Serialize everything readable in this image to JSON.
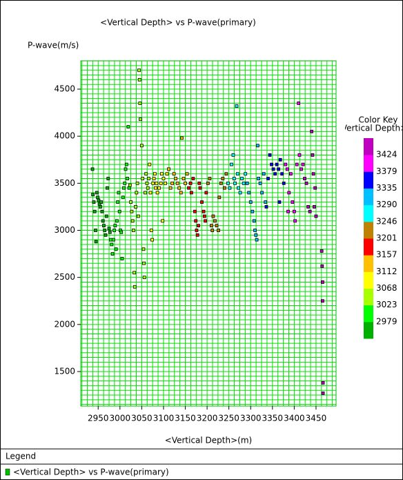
{
  "chart_data": {
    "type": "scatter",
    "title": "<Vertical Depth> vs P-wave(primary)",
    "y_label": "P-wave(m/s)",
    "x_label": "<Vertical Depth>(m)",
    "legend_title": "Legend",
    "xlim": [
      2910,
      3496
    ],
    "ylim": [
      1133,
      4801
    ],
    "xticks": [
      2950,
      3000,
      3050,
      3100,
      3150,
      3200,
      3250,
      3300,
      3350,
      3400,
      3450
    ],
    "yticks": [
      1500,
      2000,
      2500,
      3000,
      3500,
      4000,
      4500
    ],
    "grid": true,
    "grid_x_step": 12.5,
    "grid_y_step": 50,
    "series": [
      {
        "name": "<Vertical Depth> vs P-wave(primary)",
        "color": "#00c000",
        "x": [
          2937,
          2938,
          2940,
          2942,
          2944,
          2945,
          2947,
          2949,
          2951,
          2953,
          2955,
          2957,
          2959,
          2961,
          2963,
          2965,
          2967,
          2969,
          2971,
          2973,
          2975,
          2977,
          2979,
          2981,
          2983,
          2985,
          2987,
          2989,
          2991,
          2993,
          2995,
          2997,
          2999,
          3001,
          3003,
          3005,
          3007,
          3009,
          3011,
          3013,
          3015,
          3017,
          3019,
          3021,
          3023,
          3025,
          3027,
          3029,
          3031,
          3033,
          3034,
          3036,
          3038,
          3040,
          3042,
          3044,
          3045,
          3046,
          3047,
          3050,
          3052,
          3054,
          3055,
          3056,
          3058,
          3060,
          3062,
          3064,
          3066,
          3068,
          3070,
          3072,
          3074,
          3076,
          3078,
          3080,
          3082,
          3084,
          3086,
          3090,
          3094,
          3096,
          3098,
          3100,
          3104,
          3108,
          3112,
          3116,
          3120,
          3124,
          3128,
          3132,
          3136,
          3140,
          3142,
          3146,
          3150,
          3154,
          3158,
          3162,
          3164,
          3168,
          3172,
          3174,
          3176,
          3178,
          3180,
          3182,
          3184,
          3188,
          3192,
          3194,
          3196,
          3198,
          3202,
          3206,
          3210,
          3212,
          3214,
          3218,
          3222,
          3226,
          3228,
          3232,
          3236,
          3240,
          3244,
          3248,
          3252,
          3256,
          3260,
          3262,
          3264,
          3268,
          3270,
          3272,
          3276,
          3280,
          3284,
          3288,
          3292,
          3296,
          3300,
          3304,
          3308,
          3310,
          3312,
          3314,
          3316,
          3318,
          3322,
          3326,
          3330,
          3334,
          3336,
          3340,
          3344,
          3348,
          3352,
          3356,
          3360,
          3364,
          3366,
          3368,
          3372,
          3376,
          3380,
          3384,
          3386,
          3388,
          3392,
          3396,
          3400,
          3402,
          3406,
          3410,
          3412,
          3416,
          3420,
          3424,
          3428,
          3432,
          3436,
          3440,
          3442,
          3444,
          3446,
          3448,
          3450,
          3463,
          3464,
          3465,
          3465,
          3466,
          3466
        ],
        "values": [
          3650,
          3380,
          3300,
          3200,
          3000,
          2880,
          3400,
          3350,
          3320,
          3280,
          3250,
          3300,
          3200,
          3100,
          3050,
          3000,
          2950,
          3150,
          3450,
          3550,
          3020,
          2980,
          2900,
          2850,
          2750,
          2900,
          3000,
          3050,
          2800,
          3100,
          3300,
          3400,
          3200,
          3000,
          2980,
          2700,
          3350,
          3450,
          3500,
          3650,
          3700,
          3550,
          4100,
          3450,
          3480,
          3300,
          3200,
          3100,
          3000,
          2550,
          2400,
          3250,
          3400,
          3500,
          3150,
          4700,
          4600,
          4350,
          4180,
          3900,
          3550,
          2800,
          2650,
          2500,
          3400,
          3600,
          3500,
          3450,
          3550,
          3700,
          3400,
          3000,
          2900,
          3500,
          3550,
          3600,
          3450,
          3500,
          3400,
          3450,
          3500,
          3600,
          3100,
          3550,
          3500,
          3600,
          3650,
          3450,
          3500,
          3600,
          3550,
          3500,
          3450,
          3400,
          3980,
          3550,
          3500,
          3600,
          3450,
          3500,
          3400,
          3550,
          3200,
          3100,
          3000,
          2950,
          3050,
          3500,
          3450,
          3300,
          3200,
          3150,
          3100,
          3400,
          3500,
          3550,
          3050,
          3000,
          3150,
          3100,
          3050,
          3000,
          3350,
          3500,
          3550,
          3450,
          3600,
          3500,
          3450,
          3700,
          3800,
          3550,
          3500,
          4320,
          3600,
          3450,
          3400,
          3550,
          3500,
          3600,
          3500,
          3400,
          3300,
          3200,
          3100,
          3000,
          2950,
          2900,
          3900,
          3550,
          3500,
          3400,
          3600,
          3300,
          3250,
          3550,
          3800,
          3700,
          3650,
          3600,
          3700,
          3650,
          3300,
          3750,
          3600,
          3500,
          3700,
          3650,
          3200,
          3400,
          3600,
          3300,
          3200,
          3100,
          3700,
          4350,
          3800,
          3650,
          3700,
          3550,
          3500,
          3250,
          3200,
          4050,
          3800,
          3600,
          3250,
          3450,
          3150,
          2780,
          2620,
          2450,
          2250,
          1380,
          1270
        ]
      }
    ],
    "color_key": {
      "title": "Color Key",
      "label": "<Vertical Depth>(m)",
      "bounds": [
        2979,
        3023,
        3068,
        3112,
        3157,
        3201,
        3246,
        3290,
        3335,
        3379,
        3424
      ],
      "colors": [
        "#00b000",
        "#00ff00",
        "#a8ff00",
        "#ffff00",
        "#ffc000",
        "#ff0000",
        "#c08000",
        "#00ffff",
        "#00c0ff",
        "#0000ff",
        "#ff00ff",
        "#c000c0"
      ]
    }
  }
}
